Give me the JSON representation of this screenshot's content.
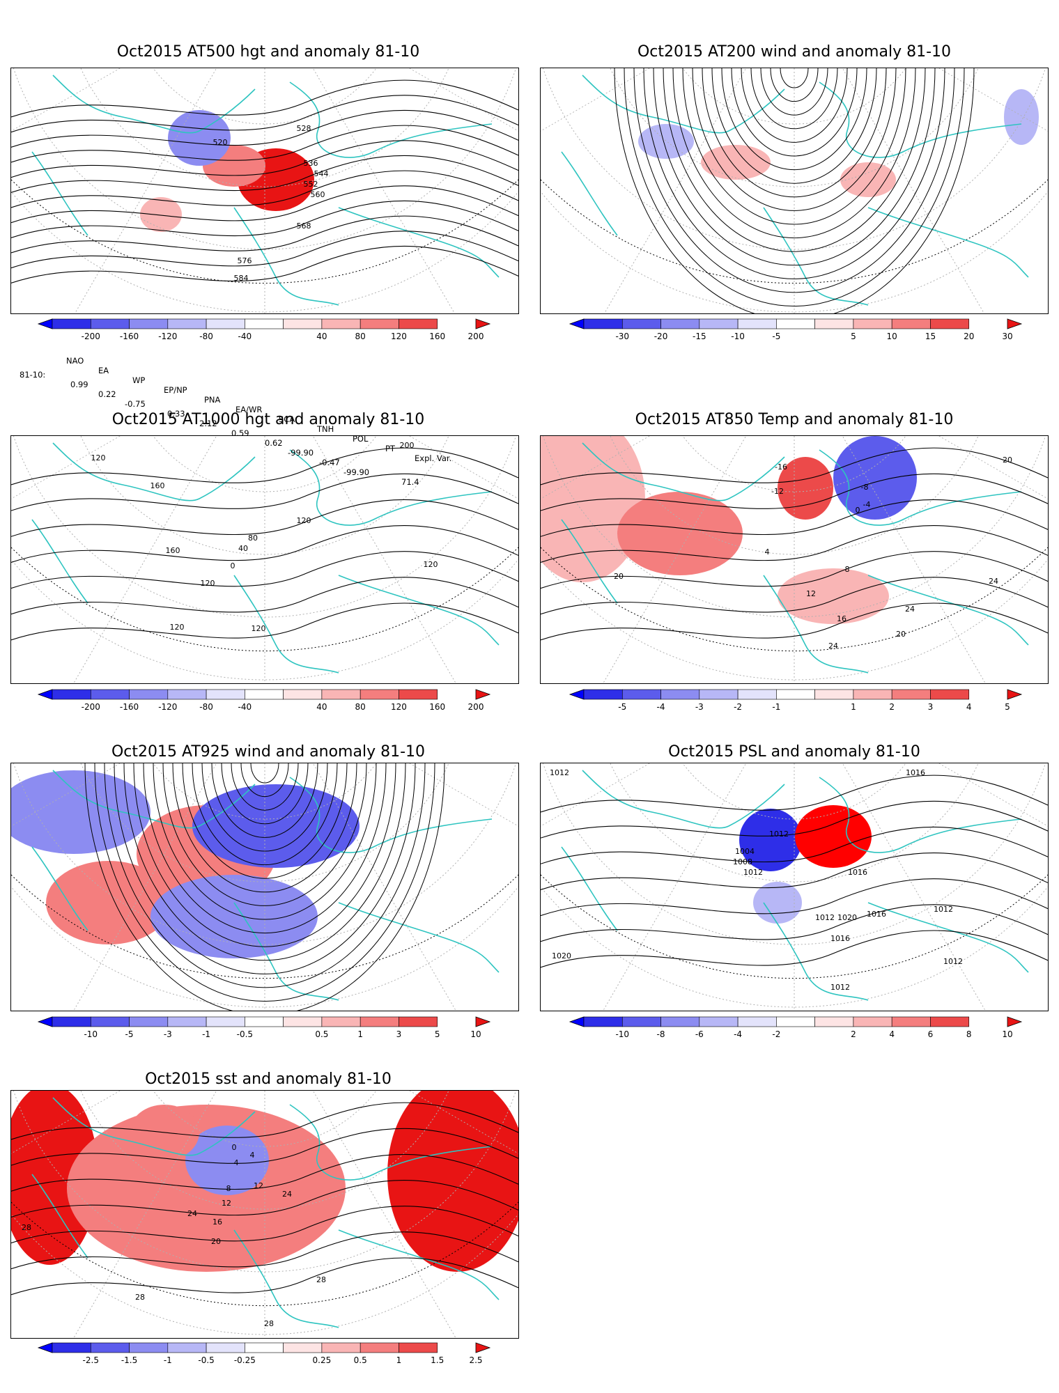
{
  "colors": {
    "coast": "#2ec4c0",
    "contour": "#000000",
    "grid": "#b0b0b0",
    "pos_scale": [
      "#fde4e4",
      "#f9b5b5",
      "#f47e7e",
      "#ec4a4a",
      "#e81414",
      "#ff0000"
    ],
    "neg_scale": [
      "#e3e3fb",
      "#b7b7f6",
      "#8c8cf1",
      "#5c5cec",
      "#2e2ee8",
      "#0000ff"
    ]
  },
  "panels": [
    {
      "id": "p500",
      "title": "Oct2015 AT500 hgt and anomaly 81-10",
      "colorbar": [
        "-200",
        "-160",
        "-120",
        "-80",
        "-40",
        "40",
        "80",
        "120",
        "160",
        "200"
      ],
      "labels": [
        "520",
        "528",
        "536",
        "544",
        "552",
        "560",
        "568",
        "576",
        "584"
      ],
      "anomalies": [
        {
          "sign": "pos",
          "level": 4
        },
        {
          "sign": "pos",
          "level": 2
        },
        {
          "sign": "neg",
          "level": 2
        },
        {
          "sign": "pos",
          "level": 1
        }
      ]
    },
    {
      "id": "p200",
      "title": "Oct2015 AT200 wind and anomaly 81-10",
      "colorbar": [
        "-30",
        "-20",
        "-15",
        "-10",
        "-5",
        "5",
        "10",
        "15",
        "20",
        "30"
      ],
      "labels": [],
      "anomalies": [
        {
          "sign": "neg",
          "level": 1
        },
        {
          "sign": "pos",
          "level": 1
        },
        {
          "sign": "pos",
          "level": 1
        },
        {
          "sign": "neg",
          "level": 1
        }
      ]
    },
    {
      "id": "p1000",
      "title": "Oct2015 AT1000 hgt and anomaly 81-10",
      "colorbar": [
        "-200",
        "-160",
        "-120",
        "-80",
        "-40",
        "40",
        "80",
        "120",
        "160",
        "200"
      ],
      "labels": [
        "120",
        "160",
        "80",
        "40",
        "0",
        "160",
        "120",
        "120",
        "120",
        "200",
        "120",
        "120"
      ],
      "anomalies": []
    },
    {
      "id": "p850",
      "title": "Oct2015 AT850 Temp and anomaly 81-10",
      "colorbar": [
        "-5",
        "-4",
        "-3",
        "-2",
        "-1",
        "1",
        "2",
        "3",
        "4",
        "5"
      ],
      "labels": [
        "-16",
        "-12",
        "-8",
        "-4",
        "0",
        "4",
        "8",
        "12",
        "16",
        "20",
        "24",
        "24",
        "20",
        "24",
        "20"
      ],
      "anomalies": [
        {
          "sign": "pos",
          "level": 1
        },
        {
          "sign": "pos",
          "level": 2
        },
        {
          "sign": "neg",
          "level": 3
        },
        {
          "sign": "pos",
          "level": 3
        },
        {
          "sign": "pos",
          "level": 1
        }
      ]
    },
    {
      "id": "p925",
      "title": "Oct2015 AT925 wind and anomaly 81-10",
      "colorbar": [
        "-10",
        "-5",
        "-3",
        "-1",
        "-0.5",
        "0.5",
        "1",
        "3",
        "5",
        "10"
      ],
      "labels": [],
      "anomalies": [
        {
          "sign": "neg",
          "level": 2
        },
        {
          "sign": "pos",
          "level": 2
        },
        {
          "sign": "neg",
          "level": 3
        },
        {
          "sign": "pos",
          "level": 2
        },
        {
          "sign": "neg",
          "level": 2
        }
      ]
    },
    {
      "id": "psl",
      "title": "Oct2015 PSL and anomaly 81-10",
      "colorbar": [
        "-10",
        "-8",
        "-6",
        "-4",
        "-2",
        "2",
        "4",
        "6",
        "8",
        "10"
      ],
      "labels": [
        "1012",
        "1012",
        "1004",
        "1008",
        "1012",
        "1016",
        "1020",
        "1016",
        "1012",
        "1016",
        "1020",
        "1016",
        "1012",
        "1012",
        "1012"
      ],
      "anomalies": [
        {
          "sign": "neg",
          "level": 4
        },
        {
          "sign": "pos",
          "level": 5
        },
        {
          "sign": "neg",
          "level": 1
        }
      ]
    },
    {
      "id": "sst",
      "title": "Oct2015 sst and anomaly 81-10",
      "colorbar": [
        "-2.5",
        "-1.5",
        "-1",
        "-0.5",
        "-0.25",
        "0.25",
        "0.5",
        "1",
        "1.5",
        "2.5"
      ],
      "labels": [
        "28",
        "28",
        "28",
        "24",
        "20",
        "16",
        "12",
        "8",
        "4",
        "0",
        "4",
        "12",
        "24",
        "28"
      ],
      "anomalies": [
        {
          "sign": "pos",
          "level": 4
        },
        {
          "sign": "pos",
          "level": 2
        },
        {
          "sign": "neg",
          "level": 2
        },
        {
          "sign": "pos",
          "level": 2
        },
        {
          "sign": "pos",
          "level": 4
        }
      ]
    }
  ],
  "teleconnections": {
    "row_label": "81-10:",
    "headers": [
      "NAO",
      "EA",
      "WP",
      "EP/NP",
      "PNA",
      "EA/WR",
      "SCA",
      "TNH",
      "POL",
      "PT",
      "Expl. Var."
    ],
    "values": [
      "0.99",
      "0.22",
      "-0.75",
      "0.33",
      "2.12",
      "0.59",
      "0.62",
      "-99.90",
      "-0.47",
      "-99.90",
      "71.4"
    ]
  }
}
